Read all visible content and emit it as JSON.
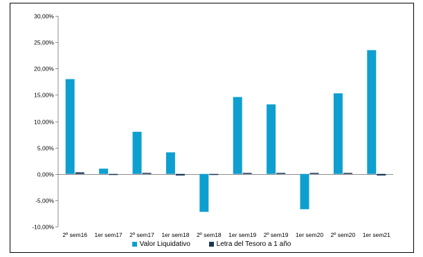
{
  "chart_data": {
    "type": "bar",
    "categories": [
      "2º sem16",
      "1er sem17",
      "2º sem17",
      "1er sem18",
      "2º sem18",
      "1er sem19",
      "2º sem19",
      "1er sem20",
      "2º sem20",
      "1er sem21"
    ],
    "series": [
      {
        "name": "Valor Liquidativo",
        "color": "#0e9fd0",
        "values": [
          18.0,
          1.0,
          8.0,
          4.1,
          -7.2,
          14.6,
          13.2,
          -6.7,
          15.3,
          23.5
        ]
      },
      {
        "name": "Letra del Tesoro a 1 año",
        "color": "#1a3557",
        "values": [
          0.3,
          -0.2,
          0.1,
          -0.3,
          -0.2,
          0.1,
          0.1,
          0.1,
          0.1,
          -0.3
        ]
      }
    ],
    "ylim": [
      -10,
      30
    ],
    "yticks": [
      -10,
      -5,
      0,
      5,
      10,
      15,
      20,
      25,
      30
    ],
    "ytick_labels": [
      "-10,00%",
      "-5,00%",
      "0,00%",
      "5,00%",
      "10,00%",
      "15,00%",
      "20,00%",
      "25,00%",
      "30,00%"
    ],
    "grid": false,
    "legend_position": "bottom"
  }
}
